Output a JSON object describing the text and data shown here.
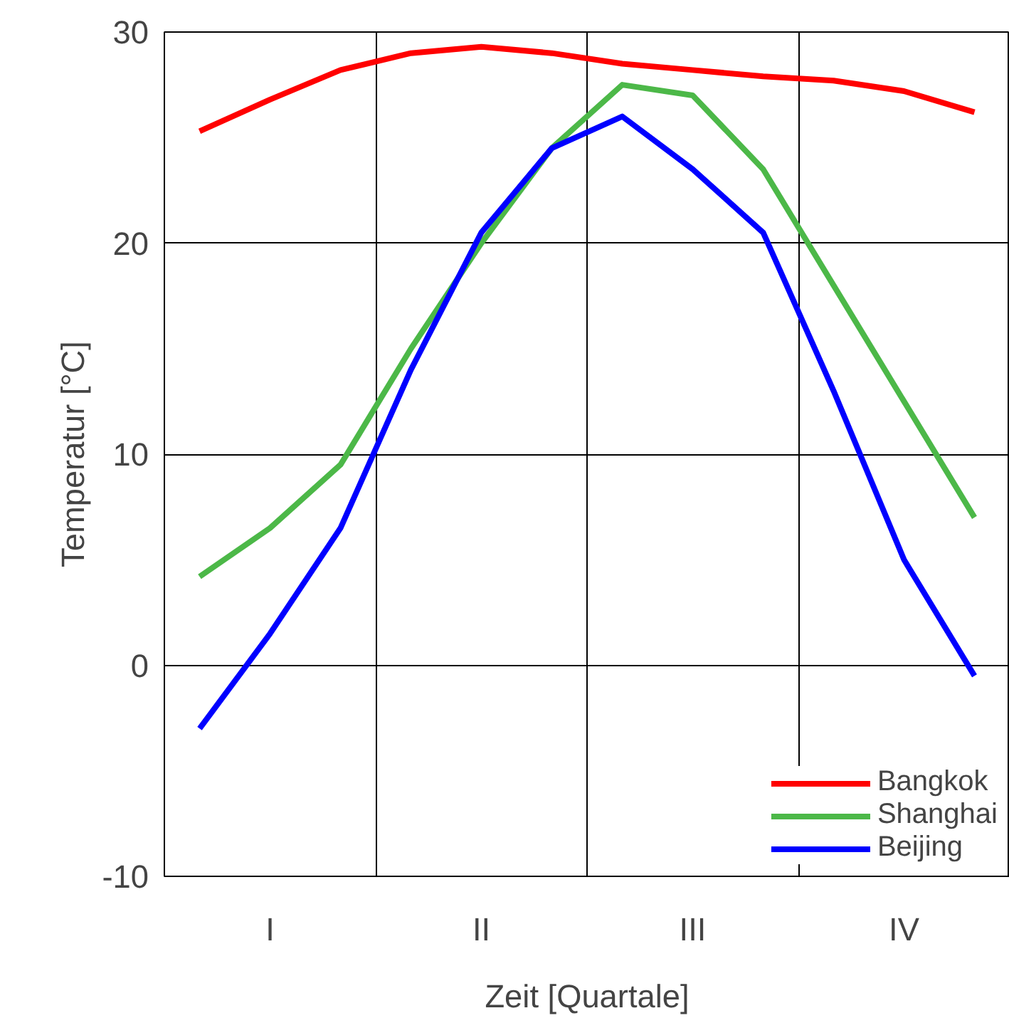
{
  "chart_data": {
    "type": "line",
    "xlabel": "Zeit [Quartale]",
    "ylabel": "Temperatur [°C]",
    "categories": [
      null,
      "I",
      null,
      null,
      "II",
      null,
      null,
      "III",
      null,
      null,
      "IV",
      null
    ],
    "ylim": [
      -10,
      30
    ],
    "yticks": [
      -10,
      0,
      10,
      20,
      30
    ],
    "grid": true,
    "legend": "bottom right",
    "line_style": "solid",
    "marker": "none",
    "series": [
      {
        "name": "Bangkok",
        "color": "#ff0000",
        "values": [
          25.3,
          26.8,
          28.2,
          29,
          29.3,
          29,
          28.5,
          28.2,
          27.9,
          27.7,
          27.2,
          26.2
        ]
      },
      {
        "name": "Shanghai",
        "color": "#4cb848",
        "values": [
          4.2,
          6.5,
          9.5,
          15,
          20,
          24.5,
          27.5,
          27,
          23.5,
          18,
          12.5,
          7
        ]
      },
      {
        "name": "Beijing",
        "color": "#0000ff",
        "values": [
          -3,
          1.5,
          6.5,
          14,
          20.5,
          24.5,
          26,
          23.5,
          20.5,
          13,
          5,
          -0.5
        ]
      }
    ]
  }
}
